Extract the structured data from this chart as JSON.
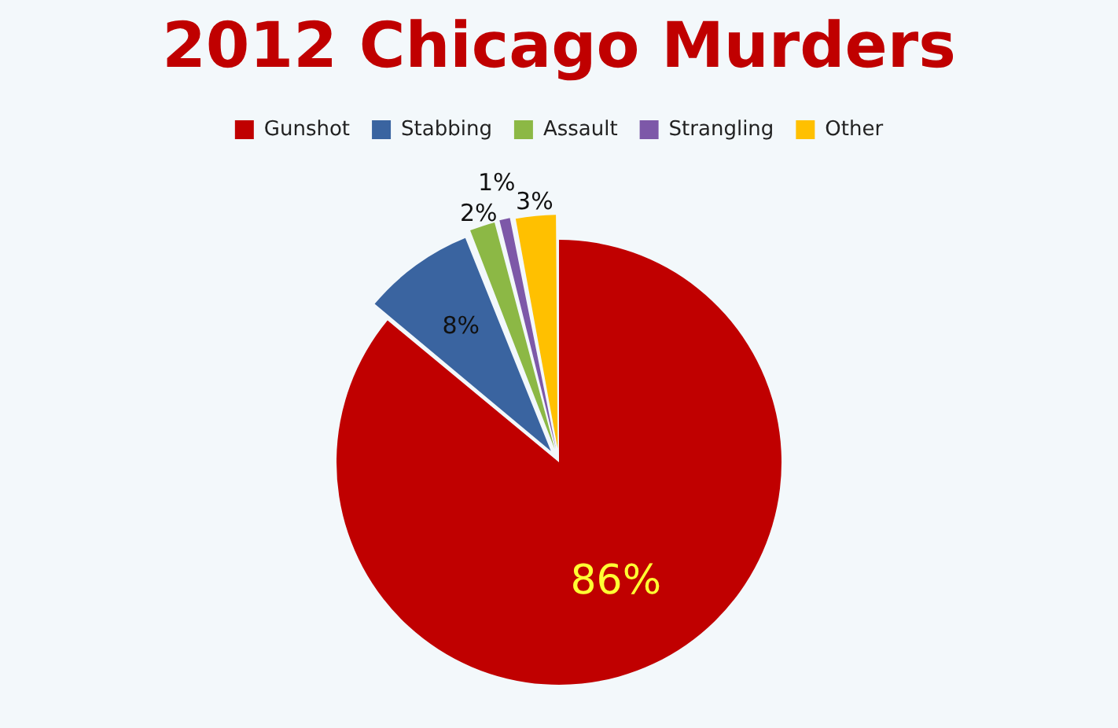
{
  "chart_data": {
    "type": "pie",
    "title": "2012 Chicago Murders",
    "categories": [
      "Gunshot",
      "Stabbing",
      "Assault",
      "Strangling",
      "Other"
    ],
    "values": [
      86,
      8,
      2,
      1,
      3
    ],
    "value_labels": [
      "86%",
      "8%",
      "2%",
      "1%",
      "3%"
    ],
    "colors": [
      "#c00000",
      "#3a64a0",
      "#8cb845",
      "#7d58a8",
      "#ffc000"
    ],
    "legend": "top"
  }
}
